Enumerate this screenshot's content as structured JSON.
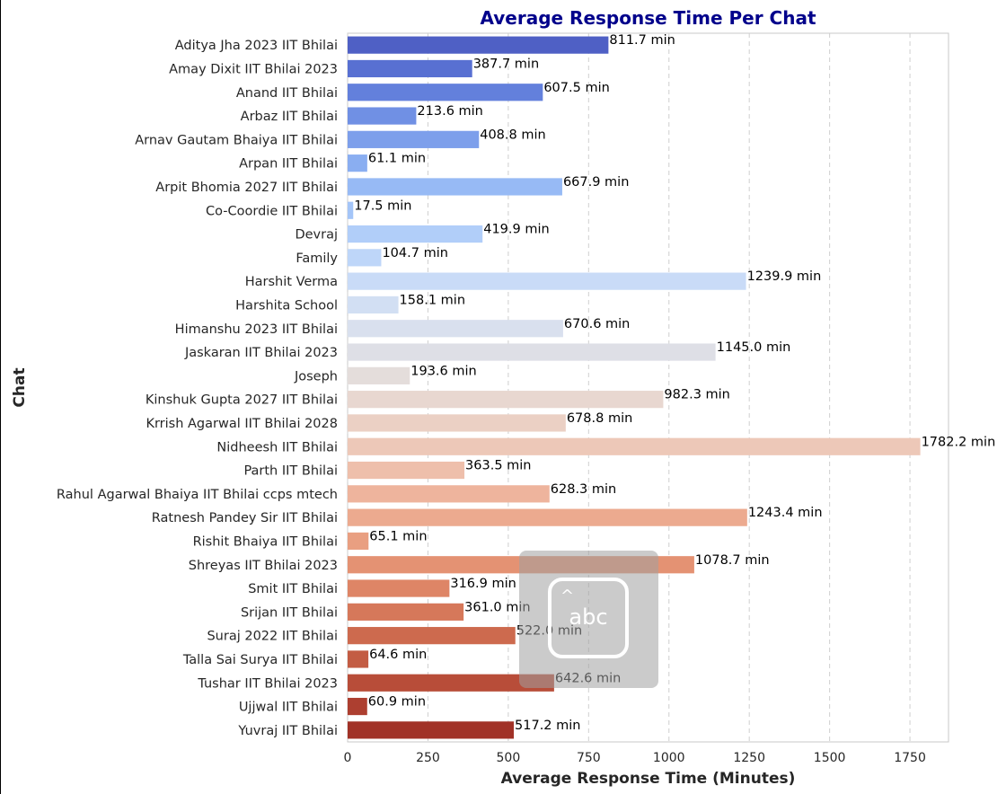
{
  "chart_data": {
    "type": "bar",
    "orientation": "horizontal",
    "title": "Average Response Time Per Chat",
    "xlabel": "Average Response Time (Minutes)",
    "ylabel": "Chat",
    "xlim": [
      0,
      1870
    ],
    "xticks": [
      0,
      250,
      500,
      750,
      1000,
      1250,
      1500,
      1750
    ],
    "grid": "vertical-dashed",
    "label_suffix": " min",
    "categories": [
      "Aditya Jha 2023 IIT Bhilai",
      "Amay Dixit IIT Bhilai 2023",
      "Anand IIT Bhilai",
      "Arbaz IIT Bhilai",
      "Arnav Gautam Bhaiya IIT Bhilai",
      "Arpan IIT Bhilai",
      "Arpit Bhomia 2027 IIT Bhilai",
      "Co-Coordie IIT Bhilai",
      "Devraj",
      "Family",
      "Harshit Verma",
      "Harshita School",
      "Himanshu 2023 IIT Bhilai",
      "Jaskaran IIT Bhilai 2023",
      "Joseph",
      "Kinshuk Gupta 2027 IIT Bhilai",
      "Krrish Agarwal IIT Bhilai 2028",
      "Nidheesh IIT Bhilai",
      "Parth IIT Bhilai",
      "Rahul Agarwal Bhaiya IIT Bhilai ccps mtech",
      "Ratnesh Pandey Sir IIT Bhilai",
      "Rishit Bhaiya IIT Bhilai",
      "Shreyas IIT Bhilai 2023",
      "Smit IIT Bhilai",
      "Srijan IIT Bhilai",
      "Suraj 2022 IIT Bhilai",
      "Talla Sai Surya IIT Bhilai",
      "Tushar IIT Bhilai 2023",
      "Ujjwal IIT Bhilai",
      "Yuvraj IIT Bhilai"
    ],
    "values": [
      811.7,
      387.7,
      607.5,
      213.6,
      408.8,
      61.1,
      667.9,
      17.5,
      419.9,
      104.7,
      1239.9,
      158.1,
      670.6,
      1145.0,
      193.6,
      982.3,
      678.8,
      1782.2,
      363.5,
      628.3,
      1243.4,
      65.1,
      1078.7,
      316.9,
      361.0,
      522.0,
      64.6,
      642.6,
      60.9,
      517.2
    ],
    "colors": [
      "#4f60c5",
      "#5870d2",
      "#6380dc",
      "#7090e4",
      "#7d9feb",
      "#8aaef1",
      "#97baf5",
      "#a4c5f8",
      "#b1cef9",
      "#bed6f9",
      "#c9dbf7",
      "#d2dff3",
      "#d9e0ee",
      "#dedfe6",
      "#e4dddb",
      "#e8d7d0",
      "#ebd0c4",
      "#edc8b8",
      "#eebfab",
      "#eeb49d",
      "#ecaa8f",
      "#e99f81",
      "#e49273",
      "#de8566",
      "#d6785a",
      "#cd6a4e",
      "#c35c43",
      "#b84d39",
      "#ad3f30",
      "#a13227"
    ]
  },
  "overlay": {
    "text": "abc",
    "icon": "text-recognition-icon"
  }
}
